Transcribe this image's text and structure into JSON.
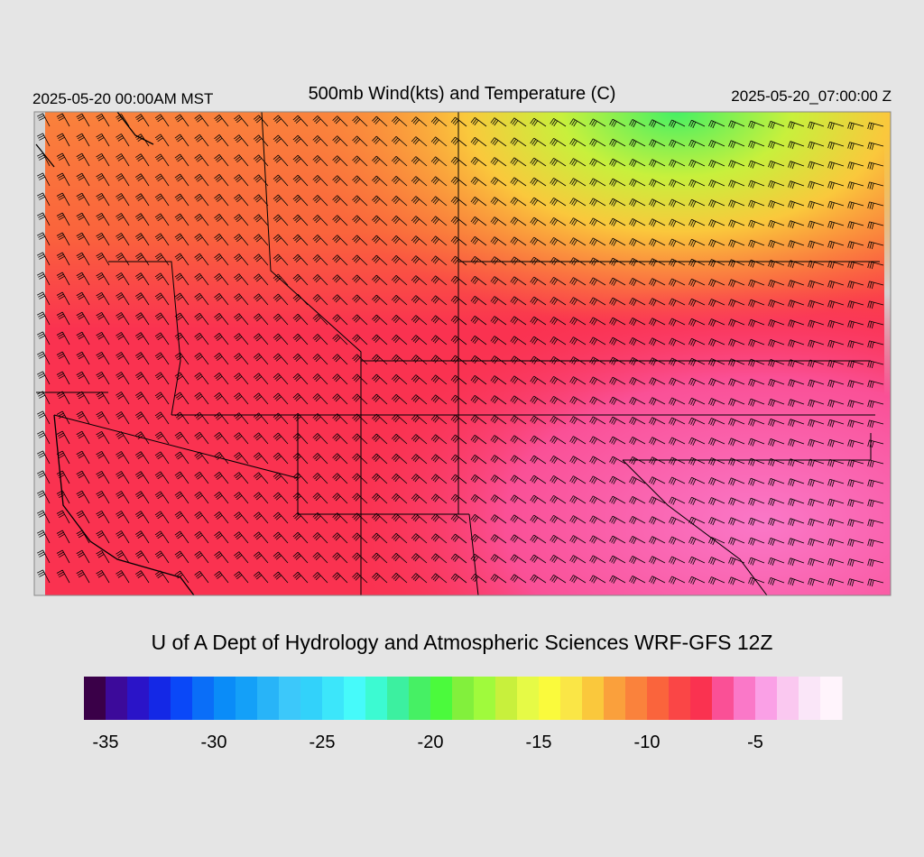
{
  "header": {
    "left": "2025-05-20 00:00AM MST",
    "title": "500mb Wind(kts) and Temperature (C)",
    "right": "2025-05-20_07:00:00 Z"
  },
  "credit": "U of A Dept of Hydrology and Atmospheric Sciences WRF-GFS 12Z",
  "colorbar": {
    "range": [
      -36,
      -1
    ],
    "ticks": [
      -35,
      -30,
      -25,
      -20,
      -15,
      -10,
      -5
    ],
    "colors": [
      "#3a0048",
      "#3c0a9a",
      "#2a14c8",
      "#1428e6",
      "#0a48f8",
      "#0a6ef8",
      "#0a8cf8",
      "#14a0f8",
      "#28b4f8",
      "#3cc8fa",
      "#32d2fa",
      "#3ce6fa",
      "#46fafa",
      "#3cfad2",
      "#3cf0a0",
      "#46f064",
      "#4bfa3c",
      "#82f03c",
      "#a0fa3c",
      "#c8f03c",
      "#e6fa46",
      "#fafa3c",
      "#fae646",
      "#fac83c",
      "#faa03c",
      "#fa823c",
      "#fa643c",
      "#fa4646",
      "#fa3250",
      "#fa5096",
      "#fa78c8",
      "#faa0e6",
      "#fac8f0",
      "#fae6f8",
      "#fff4fc"
    ]
  }
}
